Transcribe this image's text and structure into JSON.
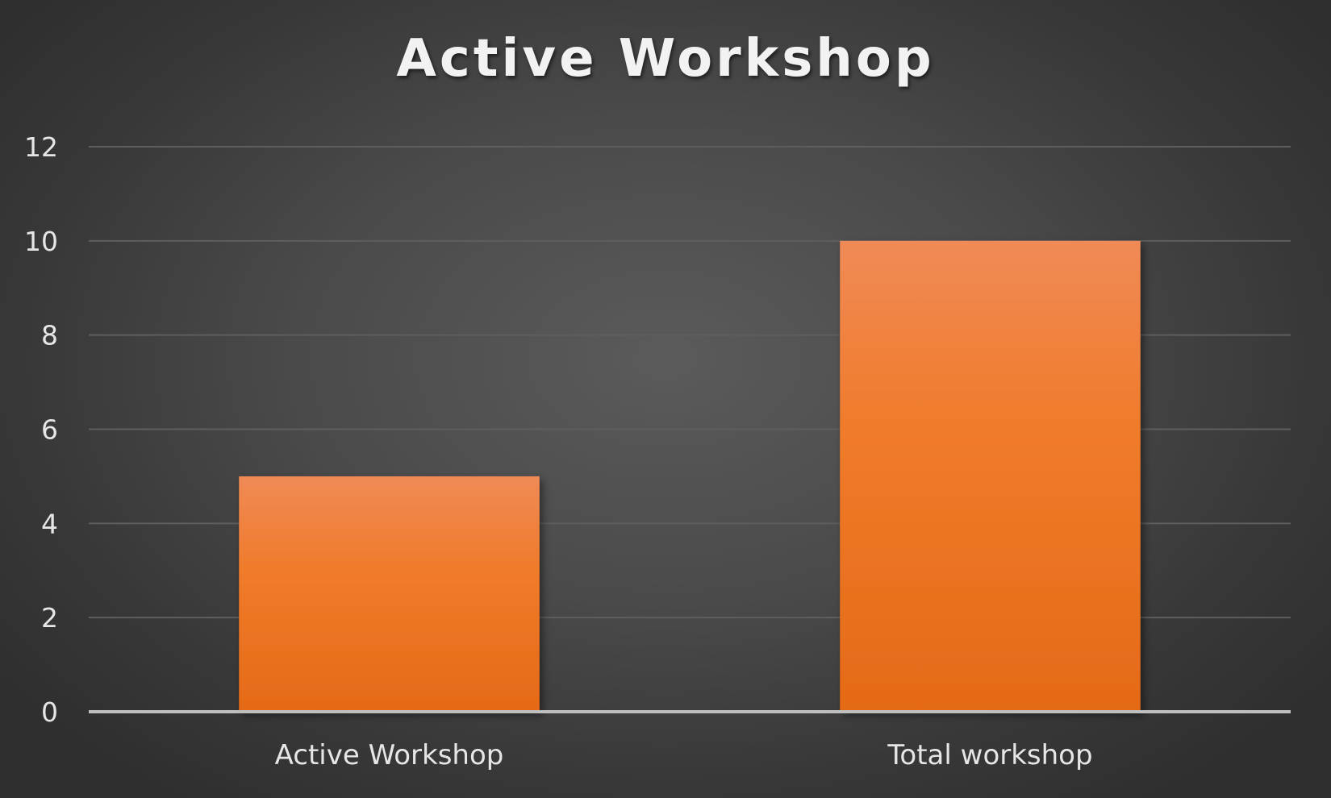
{
  "chart_data": {
    "type": "bar",
    "title": "Active Workshop",
    "categories": [
      "Active Workshop",
      "Total workshop"
    ],
    "values": [
      5,
      10
    ],
    "xlabel": "",
    "ylabel": "",
    "ylim": [
      0,
      12
    ],
    "yticks": [
      0,
      2,
      4,
      6,
      8,
      10,
      12
    ],
    "grid": true,
    "legend": "none",
    "colors": {
      "bar_top": "#f08a56",
      "bar_mid": "#f07b2a",
      "bar_bottom": "#e56a17",
      "gridline": "#5e5e5e",
      "axis": "#bfbfbf",
      "text": "#e6e6e6"
    }
  }
}
